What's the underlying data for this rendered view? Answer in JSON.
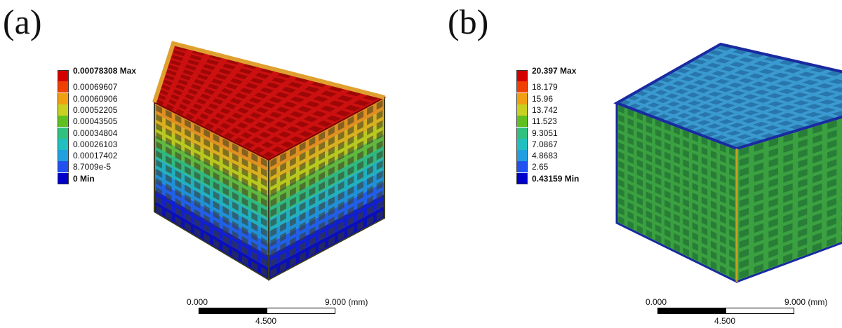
{
  "panels": [
    {
      "label": "(a)",
      "legend": [
        {
          "text": "0.00078308 Max",
          "color": "#d40000",
          "bold": true
        },
        {
          "text": "0.00069607",
          "color": "#f04000"
        },
        {
          "text": "0.00060906",
          "color": "#f0a010"
        },
        {
          "text": "0.00052205",
          "color": "#c8d020"
        },
        {
          "text": "0.00043505",
          "color": "#60c020"
        },
        {
          "text": "0.00034804",
          "color": "#30c080"
        },
        {
          "text": "0.00026103",
          "color": "#20c0c0"
        },
        {
          "text": "0.00017402",
          "color": "#20a0e0"
        },
        {
          "text": "8.7009e-5",
          "color": "#2050f0"
        },
        {
          "text": "0 Min",
          "color": "#0000c8",
          "bold": true
        }
      ],
      "scale": {
        "left": "0.000",
        "mid": "4.500",
        "right": "9.000 (mm)"
      }
    },
    {
      "label": "(b)",
      "legend": [
        {
          "text": "20.397 Max",
          "color": "#d40000",
          "bold": true
        },
        {
          "text": "18.179",
          "color": "#f04000"
        },
        {
          "text": "15.96",
          "color": "#f0a010"
        },
        {
          "text": "13.742",
          "color": "#c8d020"
        },
        {
          "text": "11.523",
          "color": "#60c020"
        },
        {
          "text": "9.3051",
          "color": "#30c080"
        },
        {
          "text": "7.0867",
          "color": "#20c0c0"
        },
        {
          "text": "4.8683",
          "color": "#20a0e0"
        },
        {
          "text": "2.65",
          "color": "#2050f0"
        },
        {
          "text": "0.43159 Min",
          "color": "#0000c8",
          "bold": true
        }
      ],
      "scale": {
        "left": "0.000",
        "mid": "4.500",
        "right": "9.000 (mm)"
      }
    }
  ],
  "colors": {
    "a_top": "#cc1010",
    "a_top_grid": "#7a0000",
    "a_front_bands": [
      "#e09020",
      "#d8b020",
      "#b8c820",
      "#60b840",
      "#30b880",
      "#20b0c0",
      "#2090d8",
      "#2060e8",
      "#1020d0",
      "#0a10b8"
    ],
    "b_top": "#3a9ad0",
    "b_top_grid": "#1a5a90",
    "b_side": "#3aa040",
    "b_side_grid": "#1a6030",
    "b_edge": "#1a2aa0"
  }
}
